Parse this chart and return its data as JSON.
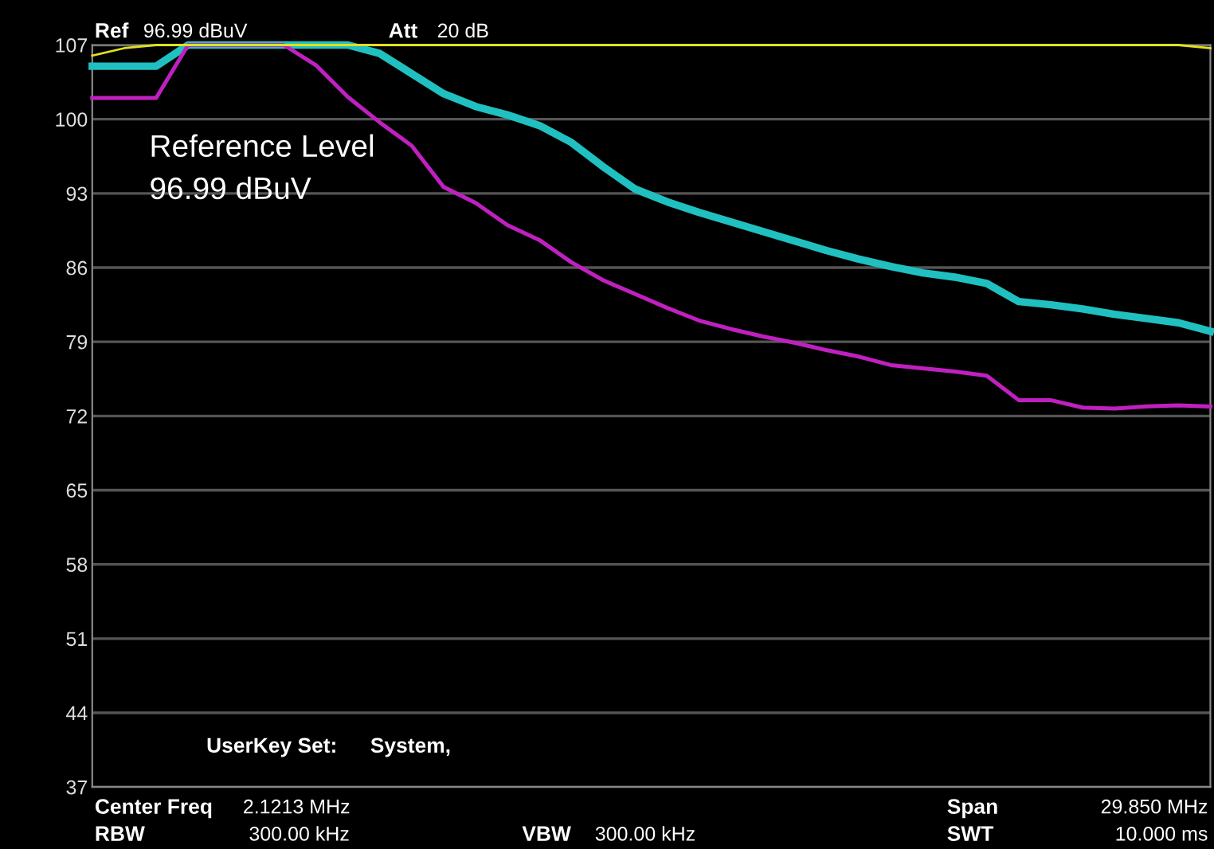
{
  "chart_data": {
    "type": "line",
    "categories": [
      null,
      null,
      null,
      null,
      null,
      null,
      null,
      null,
      null,
      null,
      null,
      null,
      null,
      null,
      null,
      null,
      null,
      null,
      null,
      null,
      null,
      null,
      null,
      null,
      null,
      null,
      null,
      null,
      null,
      null,
      null,
      null,
      null,
      null,
      null,
      null
    ],
    "series": [
      {
        "color": "#e0e020",
        "values": [
          106,
          106.7,
          107,
          107,
          107,
          107,
          107,
          107,
          107,
          107,
          107,
          107,
          107,
          107,
          107,
          107,
          107,
          107,
          107,
          107,
          107,
          107,
          107,
          107,
          107,
          107,
          107,
          107,
          107,
          107,
          107,
          107,
          107,
          107,
          107,
          106.7
        ]
      },
      {
        "color": "#20c0c0",
        "values": [
          105,
          105,
          105,
          107,
          107,
          107,
          107,
          107,
          107,
          106.2,
          104.3,
          102.4,
          101.2,
          100.4,
          99.4,
          97.8,
          95.5,
          93.4,
          92.2,
          91.2,
          90.3,
          89.4,
          88.5,
          87.6,
          86.8,
          86.1,
          85.5,
          85.1,
          84.5,
          82.8,
          82.5,
          82.1,
          81.6,
          81.2,
          80.8,
          80.0
        ]
      },
      {
        "color": "#c020c0",
        "values": [
          102,
          102,
          102,
          107,
          107,
          107,
          107,
          105.1,
          102.1,
          99.7,
          97.5,
          93.6,
          92.1,
          90.0,
          88.6,
          86.5,
          84.8,
          83.5,
          82.2,
          81.0,
          80.2,
          79.5,
          78.9,
          78.2,
          77.6,
          76.8,
          76.5,
          76.2,
          75.8,
          73.5,
          73.5,
          72.8,
          72.7,
          72.9,
          73.0,
          72.9
        ]
      }
    ],
    "ylim": [
      37,
      107
    ],
    "yticks": [
      37,
      44,
      51,
      58,
      65,
      72,
      79,
      86,
      93,
      100,
      107
    ],
    "grid": "y",
    "tick_labels": "y",
    "annotations": [
      "Ref",
      "96.99 dBuV",
      "Att",
      "20 dB",
      "Reference Level\n96.99 dBuV",
      "UserKey Set:",
      "System,",
      "Center Freq",
      "2.1213 MHz",
      "RBW",
      "300.00 kHz",
      "VBW",
      "300.00 kHz",
      "Span",
      "29.850 MHz",
      "SWT",
      "10.000 ms"
    ]
  }
}
